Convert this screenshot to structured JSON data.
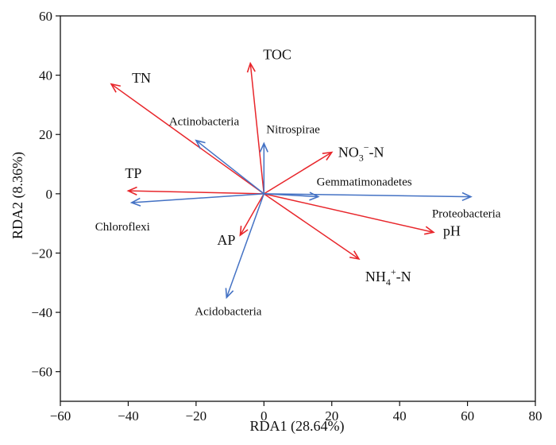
{
  "chart_data": {
    "type": "scatter",
    "subtype": "rda-biplot",
    "title": "",
    "xlabel": "RDA1 (28.64%)",
    "ylabel": "RDA2 (8.36%)",
    "xlim": [
      -60,
      80
    ],
    "ylim": [
      -70,
      60
    ],
    "xticks": [
      -60,
      -40,
      -20,
      0,
      20,
      40,
      60,
      80
    ],
    "yticks": [
      -60,
      -40,
      -20,
      0,
      20,
      40,
      60
    ],
    "grid": false,
    "legend": "none",
    "colors": {
      "environment": "#e8262b",
      "taxa": "#4472c4"
    },
    "series": [
      {
        "group": "environment",
        "vectors": [
          {
            "label": "TOC",
            "x": -4,
            "y": 44
          },
          {
            "label": "TN",
            "x": -45,
            "y": 37
          },
          {
            "label": "TP",
            "x": -40,
            "y": 1
          },
          {
            "label": "AP",
            "x": -7,
            "y": -14
          },
          {
            "label": "NO3−-N",
            "label_base": "NO",
            "label_sub": "3",
            "label_sup": "−",
            "label_tail": "-N",
            "x": 20,
            "y": 14
          },
          {
            "label": "pH",
            "x": 50,
            "y": -13
          },
          {
            "label": "NH4+-N",
            "label_base": "NH",
            "label_sub": "4",
            "label_sup": "+",
            "label_tail": "-N",
            "x": 28,
            "y": -22
          }
        ]
      },
      {
        "group": "taxa",
        "vectors": [
          {
            "label": "Actinobacteria",
            "x": -20,
            "y": 18
          },
          {
            "label": "Nitrospirae",
            "x": 0,
            "y": 17
          },
          {
            "label": "Gemmatimonadetes",
            "x": 16,
            "y": -1
          },
          {
            "label": "Proteobacteria",
            "x": 61,
            "y": -1
          },
          {
            "label": "Chloroflexi",
            "x": -39,
            "y": -3
          },
          {
            "label": "Acidobacteria",
            "x": -11,
            "y": -35
          }
        ]
      }
    ]
  }
}
